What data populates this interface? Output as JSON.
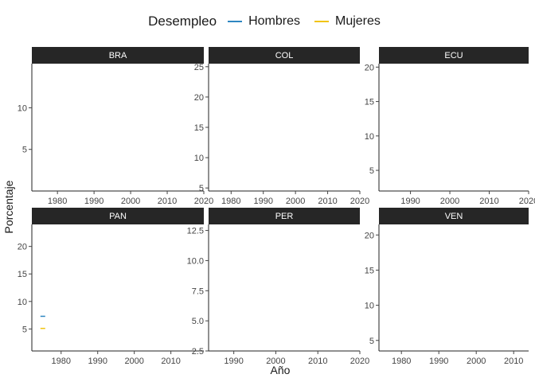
{
  "legend": {
    "title": "Desempleo",
    "items": [
      {
        "label": "Hombres",
        "color": "#2E86C1"
      },
      {
        "label": "Mujeres",
        "color": "#F1C40F"
      }
    ]
  },
  "chart_data": {
    "type": "line",
    "title": "",
    "xlabel": "Año",
    "ylabel": "Porcentaje",
    "grid": false,
    "legend_position": "top",
    "strip_color": "#262626",
    "facets": [
      {
        "name": "BRA",
        "xlim": [
          1973,
          2020
        ],
        "ylim": [
          0,
          15.3
        ],
        "xticks": [
          1980,
          1990,
          2000,
          2010,
          2020
        ],
        "yticks": [
          5,
          10
        ],
        "series": [
          {
            "name": "Hombres",
            "x": [],
            "y": []
          },
          {
            "name": "Mujeres",
            "x": [],
            "y": []
          }
        ]
      },
      {
        "name": "COL",
        "xlim": [
          1973,
          2020
        ],
        "ylim": [
          4.5,
          25.5
        ],
        "xticks": [
          1980,
          1990,
          2000,
          2010,
          2020
        ],
        "yticks": [
          5,
          10,
          15,
          20,
          25
        ],
        "series": [
          {
            "name": "Hombres",
            "x": [],
            "y": []
          },
          {
            "name": "Mujeres",
            "x": [],
            "y": []
          }
        ]
      },
      {
        "name": "ECU",
        "xlim": [
          1982,
          2020
        ],
        "ylim": [
          2,
          20.5
        ],
        "xticks": [
          1990,
          2000,
          2010,
          2020
        ],
        "yticks": [
          5,
          10,
          15,
          20
        ],
        "series": [
          {
            "name": "Hombres",
            "x": [],
            "y": []
          },
          {
            "name": "Mujeres",
            "x": [],
            "y": []
          }
        ]
      },
      {
        "name": "PAN",
        "xlim": [
          1972,
          2019
        ],
        "ylim": [
          1,
          24
        ],
        "xticks": [
          1980,
          1990,
          2000,
          2010
        ],
        "yticks": [
          5,
          10,
          15,
          20
        ],
        "series": [
          {
            "name": "Hombres",
            "x": [
              1975
            ],
            "y": [
              7.3
            ]
          },
          {
            "name": "Mujeres",
            "x": [
              1975
            ],
            "y": [
              5.1
            ]
          }
        ]
      },
      {
        "name": "PER",
        "xlim": [
          1984,
          2020
        ],
        "ylim": [
          2.5,
          13
        ],
        "xticks": [
          1990,
          2000,
          2010,
          2020
        ],
        "yticks": [
          2.5,
          5.0,
          7.5,
          10.0,
          12.5
        ],
        "ytick_labels": [
          "2.5",
          "5.0",
          "7.5",
          "10.0",
          "12.5"
        ],
        "series": [
          {
            "name": "Hombres",
            "x": [],
            "y": []
          },
          {
            "name": "Mujeres",
            "x": [],
            "y": []
          }
        ]
      },
      {
        "name": "VEN",
        "xlim": [
          1974,
          2014
        ],
        "ylim": [
          3.5,
          21.5
        ],
        "xticks": [
          1980,
          1990,
          2000,
          2010
        ],
        "yticks": [
          5,
          10,
          15,
          20
        ],
        "series": [
          {
            "name": "Hombres",
            "x": [],
            "y": []
          },
          {
            "name": "Mujeres",
            "x": [],
            "y": []
          }
        ]
      }
    ]
  }
}
